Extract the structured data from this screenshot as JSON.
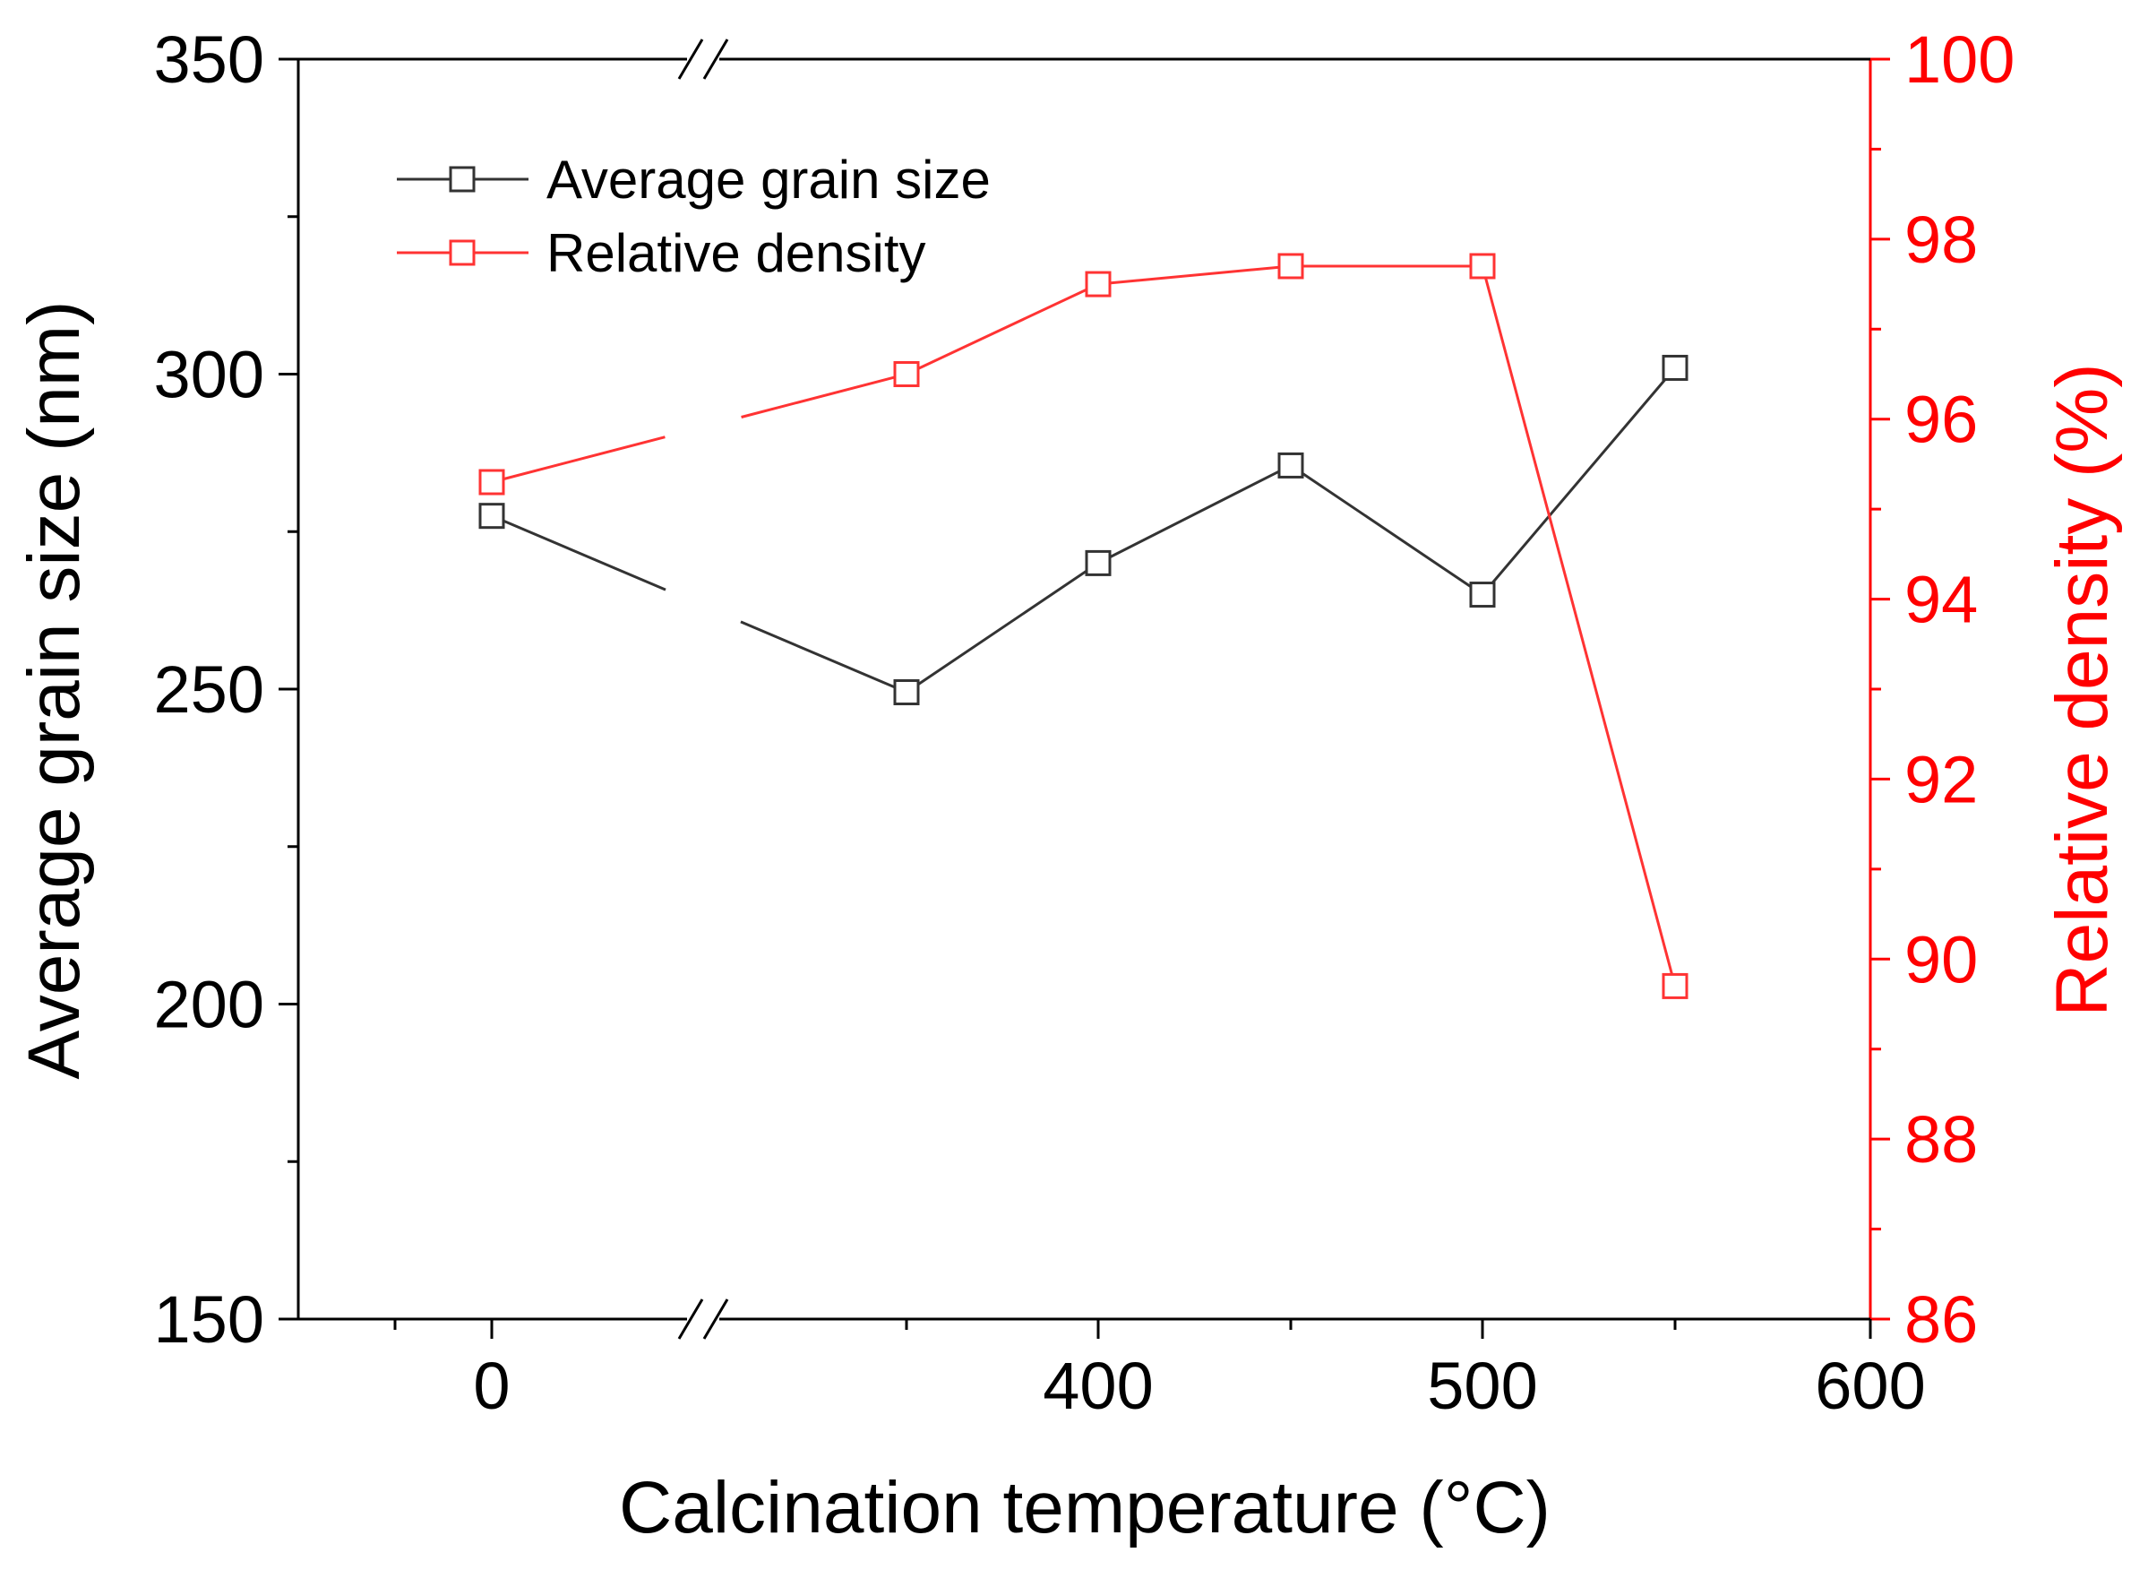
{
  "chart_data": {
    "type": "line",
    "x_axis": {
      "label": "Calcination temperature (°C)",
      "ticks": [
        0,
        400,
        500,
        600
      ],
      "tick_labels": [
        "0",
        "400",
        "500",
        "600"
      ],
      "broken": true,
      "break_between": [
        0,
        400
      ]
    },
    "y_left": {
      "label": "Average grain size (nm)",
      "range": [
        150,
        350
      ],
      "ticks": [
        150,
        200,
        250,
        300,
        350
      ],
      "tick_labels": [
        "150",
        "200",
        "250",
        "300",
        "350"
      ],
      "color": "#000000"
    },
    "y_right": {
      "label": "Relative density (%)",
      "range": [
        86,
        100
      ],
      "ticks": [
        86,
        88,
        90,
        92,
        94,
        96,
        98,
        100
      ],
      "tick_labels": [
        "86",
        "88",
        "90",
        "92",
        "94",
        "96",
        "98",
        "100"
      ],
      "color": "#ff0000"
    },
    "x_categories": [
      "0",
      "350",
      "400",
      "450",
      "500",
      "550"
    ],
    "series": [
      {
        "name": "Average grain size",
        "axis": "left",
        "color": "#333333",
        "marker": "open-square",
        "values": [
          277.5,
          249.5,
          270,
          285.5,
          265,
          301
        ]
      },
      {
        "name": "Relative density",
        "axis": "right",
        "color": "#ff3333",
        "marker": "open-square",
        "values": [
          95.3,
          96.5,
          97.5,
          97.7,
          97.7,
          89.7
        ]
      }
    ],
    "legend": {
      "position": "top-left",
      "entries": [
        "Average grain size",
        "Relative density"
      ]
    }
  }
}
